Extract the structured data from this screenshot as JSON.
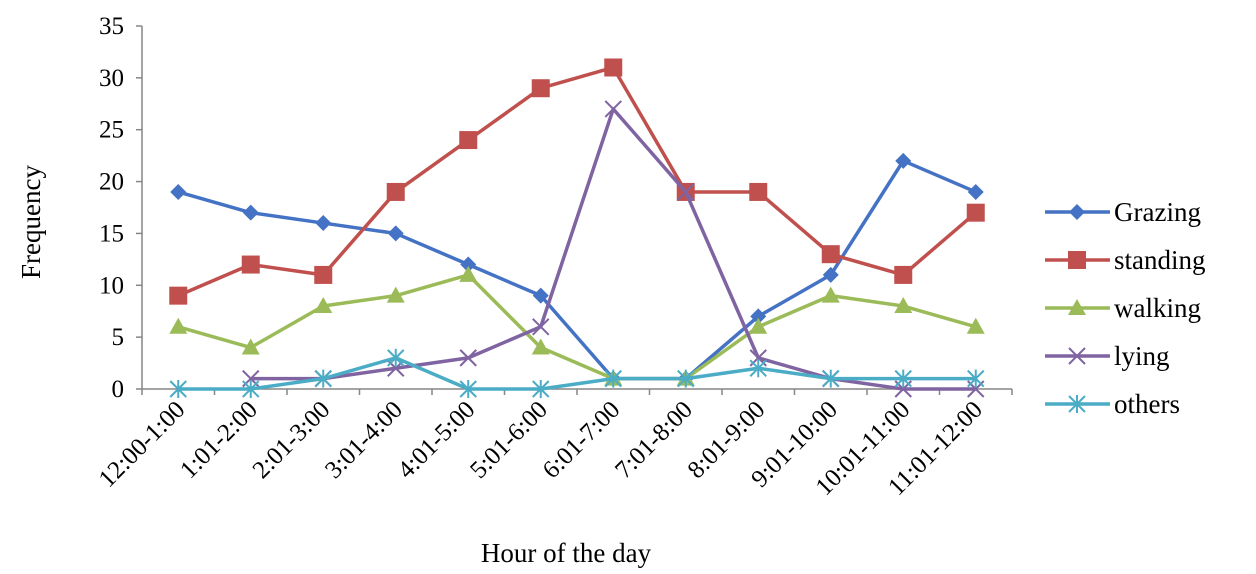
{
  "chart_data": {
    "type": "line",
    "title": "",
    "xlabel": "Hour of the day",
    "ylabel": "Frequency",
    "ylim": [
      0,
      35
    ],
    "yticks": [
      0,
      5,
      10,
      15,
      20,
      25,
      30,
      35
    ],
    "grid": false,
    "legend_position": "right",
    "categories": [
      "12:00-1:00",
      "1:01-2:00",
      "2:01-3:00",
      "3:01-4:00",
      "4:01-5:00",
      "5:01-6:00",
      "6:01-7:00",
      "7:01-8:00",
      "8:01-9:00",
      "9:01-10:00",
      "10:01-11:00",
      "11:01-12:00"
    ],
    "series": [
      {
        "name": "Grazing",
        "color": "#4472C4",
        "marker": "diamond",
        "values": [
          19,
          17,
          16,
          15,
          12,
          9,
          1,
          1,
          7,
          11,
          22,
          19
        ]
      },
      {
        "name": "standing",
        "color": "#C0504D",
        "marker": "square",
        "values": [
          9,
          12,
          11,
          19,
          24,
          29,
          31,
          19,
          19,
          13,
          11,
          17
        ]
      },
      {
        "name": "walking",
        "color": "#9BBB59",
        "marker": "triangle",
        "values": [
          6,
          4,
          8,
          9,
          11,
          4,
          1,
          1,
          6,
          9,
          8,
          6
        ]
      },
      {
        "name": "lying",
        "color": "#8064A2",
        "marker": "x",
        "values": [
          null,
          1,
          1,
          2,
          3,
          6,
          27,
          19,
          3,
          1,
          0,
          0
        ]
      },
      {
        "name": "others",
        "color": "#4BACC6",
        "marker": "star",
        "values": [
          0,
          0,
          1,
          3,
          0,
          0,
          1,
          1,
          2,
          1,
          1,
          1
        ]
      }
    ]
  }
}
